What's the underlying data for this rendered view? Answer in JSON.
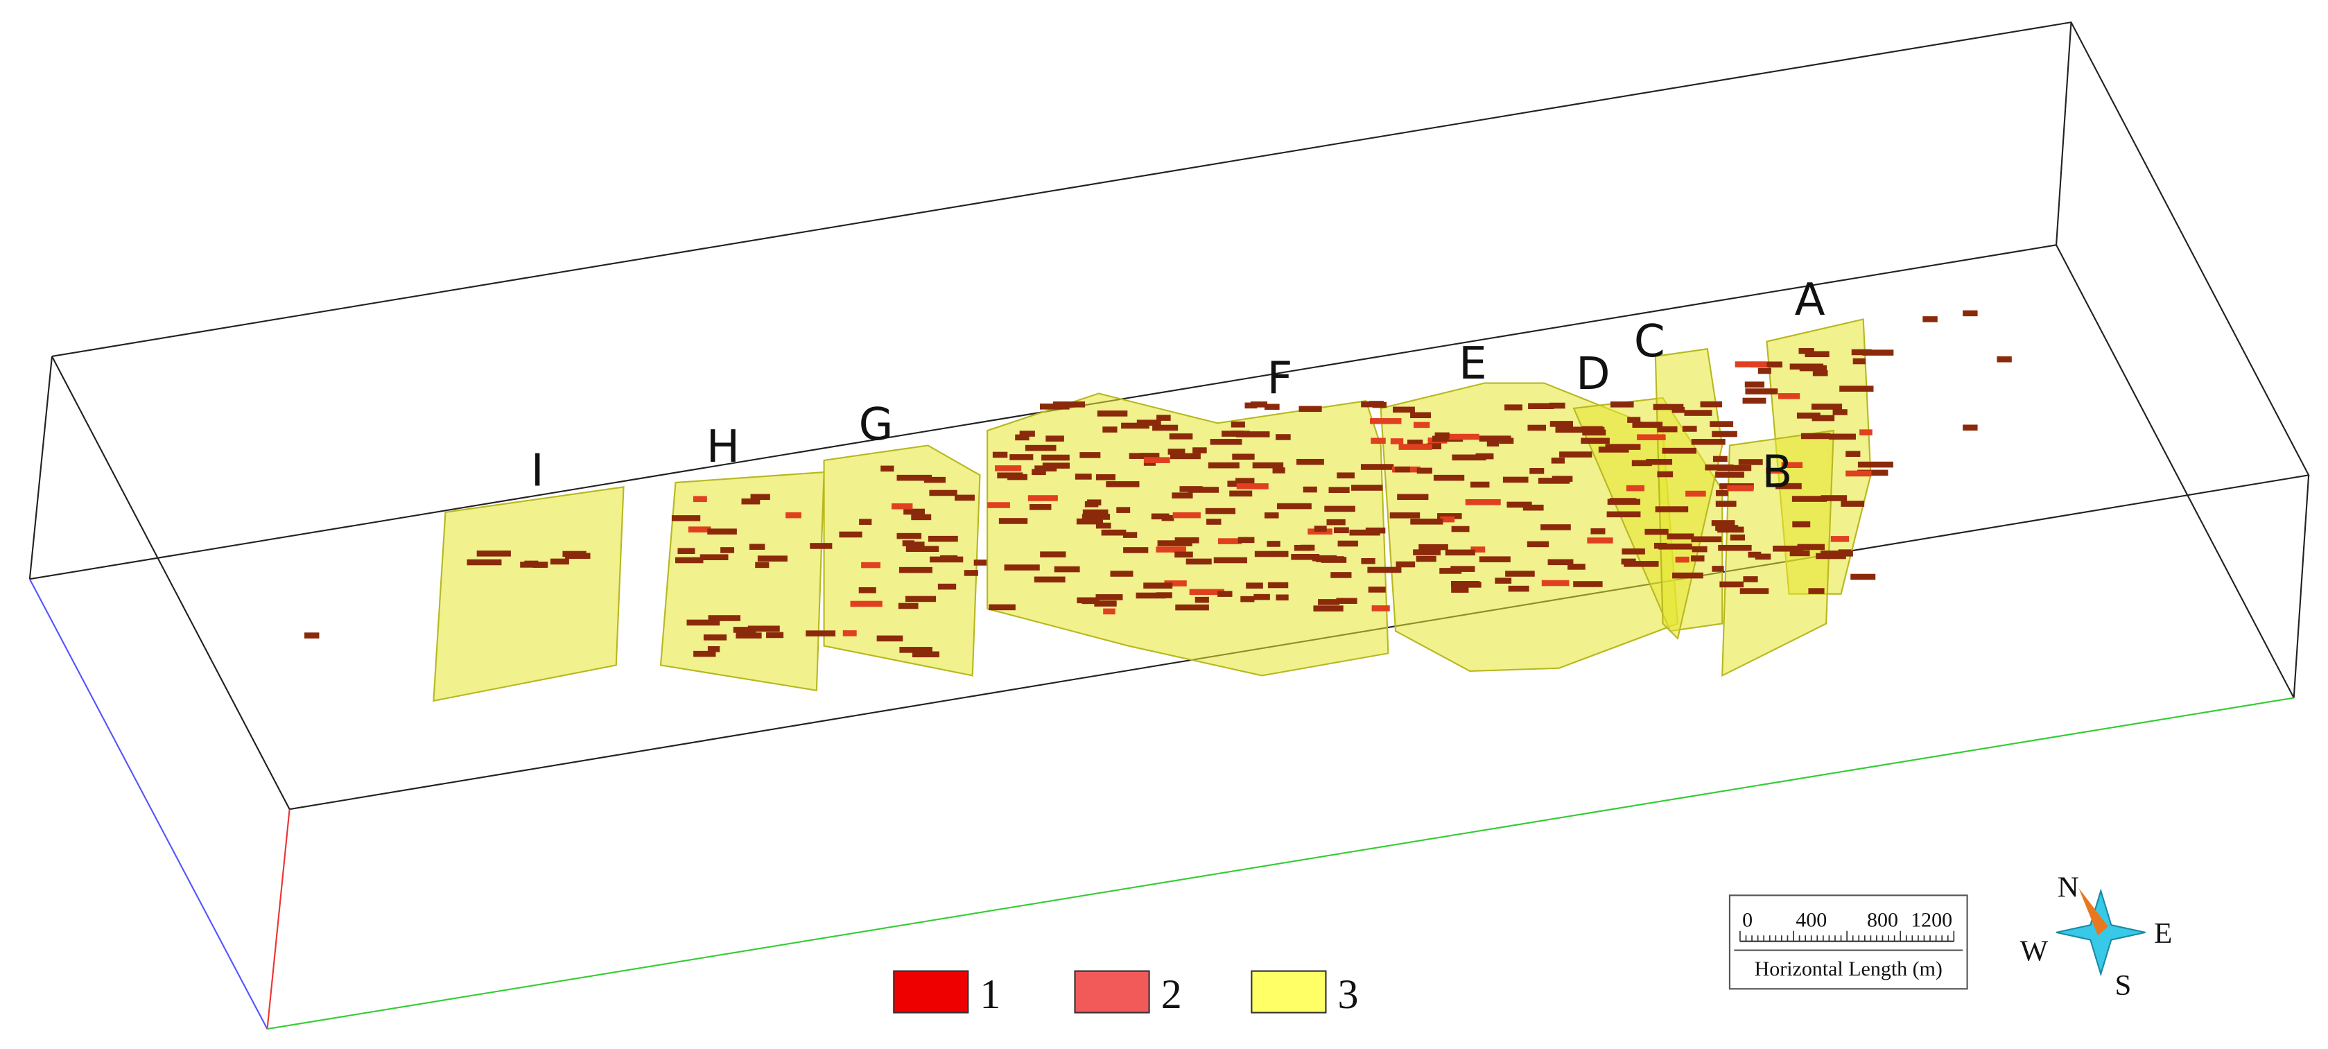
{
  "zone_labels": [
    "I",
    "H",
    "G",
    "F",
    "E",
    "D",
    "C",
    "B",
    "A"
  ],
  "legend": {
    "items": [
      "1",
      "2",
      "3"
    ]
  },
  "scale_bar": {
    "ticks": [
      "0",
      "400",
      "800",
      "1200"
    ],
    "title": "Horizontal Length (m)"
  },
  "compass": {
    "north": "N",
    "east": "E",
    "south": "S",
    "west": "W"
  }
}
